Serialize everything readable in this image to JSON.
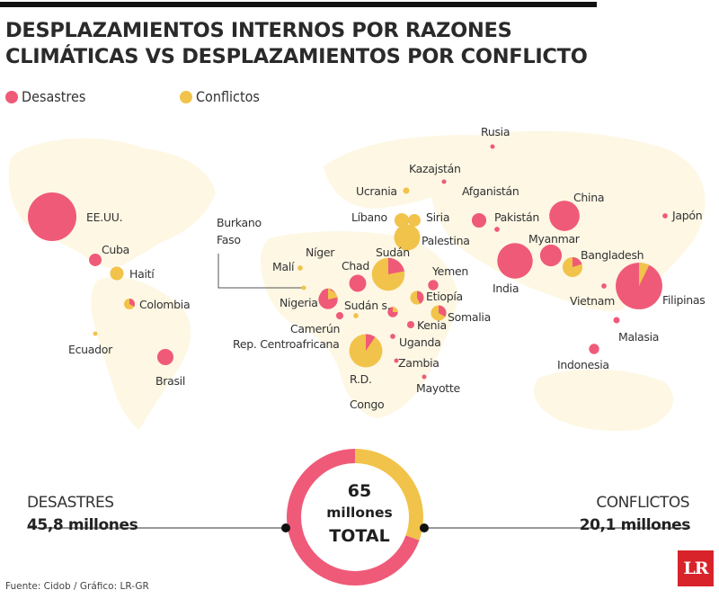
{
  "title": {
    "line1": "DESPLAZAMIENTOS INTERNOS POR RAZONES",
    "line2": "CLIMÁTICAS VS DESPLAZAMIENTOS POR CONFLICTO"
  },
  "legend": [
    {
      "label": "Desastres",
      "color": "#ef5a78"
    },
    {
      "label": "Conflictos",
      "color": "#f2c34a"
    }
  ],
  "chart_data": [
    {
      "type": "bubble-map",
      "title": "DESPLAZAMIENTOS INTERNOS POR RAZONES CLIMÁTICAS VS DESPLAZAMIENTOS POR CONFLICTO",
      "series": [
        "Desastres",
        "Conflictos"
      ],
      "countries": [
        {
          "name": "EE.UU.",
          "disaster": 9,
          "conflict": 0
        },
        {
          "name": "Cuba",
          "disaster": 0.6,
          "conflict": 0
        },
        {
          "name": "Haití",
          "disaster": 0,
          "conflict": 0.7
        },
        {
          "name": "Colombia",
          "disaster": 0.15,
          "conflict": 0.3
        },
        {
          "name": "Ecuador",
          "disaster": 0,
          "conflict": 0.03
        },
        {
          "name": "Brasil",
          "disaster": 1.0,
          "conflict": 0
        },
        {
          "name": "Rusia",
          "disaster": 0.05,
          "conflict": 0
        },
        {
          "name": "Kazajstán",
          "disaster": 0.05,
          "conflict": 0
        },
        {
          "name": "Ucrania",
          "disaster": 0,
          "conflict": 0.15
        },
        {
          "name": "Afganistán",
          "disaster": 0.8,
          "conflict": 0
        },
        {
          "name": "Líbano",
          "disaster": 0,
          "conflict": 0.8
        },
        {
          "name": "Siria",
          "disaster": 0,
          "conflict": 0.6
        },
        {
          "name": "Palestina",
          "disaster": 0,
          "conflict": 2.6
        },
        {
          "name": "China",
          "disaster": 3.5,
          "conflict": 0
        },
        {
          "name": "Japón",
          "disaster": 0.1,
          "conflict": 0
        },
        {
          "name": "Pakistán",
          "disaster": 0.1,
          "conflict": 0
        },
        {
          "name": "Myanmar",
          "disaster": 1.8,
          "conflict": 0
        },
        {
          "name": "Bangladesh",
          "disaster": 0.3,
          "conflict": 1.2
        },
        {
          "name": "India",
          "disaster": 4.8,
          "conflict": 0
        },
        {
          "name": "Vietnam",
          "disaster": 0.1,
          "conflict": 0
        },
        {
          "name": "Filipinas",
          "disaster": 7.7,
          "conflict": 0.6
        },
        {
          "name": "Malasia",
          "disaster": 0.15,
          "conflict": 0
        },
        {
          "name": "Indonesia",
          "disaster": 0.4,
          "conflict": 0
        },
        {
          "name": "Burkano Faso",
          "disaster": 0,
          "conflict": 0.03
        },
        {
          "name": "Malí",
          "disaster": 0,
          "conflict": 0.1
        },
        {
          "name": "Níger",
          "disaster": 1.0,
          "conflict": 0.05
        },
        {
          "name": "Chad",
          "disaster": 1.1,
          "conflict": 0
        },
        {
          "name": "Sudán",
          "disaster": 0.9,
          "conflict": 3.2
        },
        {
          "name": "Nigeria",
          "disaster": 1.1,
          "conflict": 0.3
        },
        {
          "name": "Sudán s.",
          "disaster": 0.3,
          "conflict": 0.1
        },
        {
          "name": "Camerún",
          "disaster": 0.2,
          "conflict": 0
        },
        {
          "name": "Yemen",
          "disaster": 0.4,
          "conflict": 0
        },
        {
          "name": "Etiopía",
          "disaster": 0.3,
          "conflict": 0.4
        },
        {
          "name": "Somalia",
          "disaster": 0.3,
          "conflict": 0.6
        },
        {
          "name": "Kenia",
          "disaster": 0.2,
          "conflict": 0
        },
        {
          "name": "Uganda",
          "disaster": 0.1,
          "conflict": 0
        },
        {
          "name": "Rep. Centroafricana",
          "disaster": 0,
          "conflict": 0.1
        },
        {
          "name": "Zambia",
          "disaster": 0.05,
          "conflict": 0
        },
        {
          "name": "Mayotte",
          "disaster": 0.05,
          "conflict": 0
        },
        {
          "name": "R.D. Congo",
          "disaster": 0.4,
          "conflict": 3.8
        }
      ]
    },
    {
      "type": "pie",
      "title": "65 millones TOTAL",
      "categories": [
        "Desastres",
        "Conflictos"
      ],
      "values": [
        45.8,
        20.1
      ],
      "unit": "millones"
    }
  ],
  "labels": {
    "eeuu": "EE.UU.",
    "cuba": "Cuba",
    "haiti": "Haití",
    "colombia": "Colombia",
    "ecuador": "Ecuador",
    "brasil": "Brasil",
    "rusia": "Rusia",
    "kazajstan": "Kazajstán",
    "ucrania": "Ucrania",
    "afganistan": "Afganistán",
    "libano": "Líbano",
    "siria": "Siria",
    "palestina": "Palestina",
    "china": "China",
    "japon": "Japón",
    "pakistan": "Pakistán",
    "myanmar": "Myanmar",
    "bangladesh": "Bangladesh",
    "india": "India",
    "vietnam": "Vietnam",
    "filipinas": "Filipinas",
    "malasia": "Malasia",
    "indonesia": "Indonesia",
    "burkano1": "Burkano",
    "burkano2": "Faso",
    "mali": "Malí",
    "niger": "Níger",
    "chad": "Chad",
    "sudan": "Sudán",
    "nigeria": "Nigeria",
    "sudans": "Sudán s.",
    "camerun": "Camerún",
    "yemen": "Yemen",
    "etiopia": "Etiopía",
    "somalia": "Somalia",
    "kenia": "Kenia",
    "uganda": "Uganda",
    "rca": "Rep. Centroafricana",
    "zambia": "Zambia",
    "mayotte": "Mayotte",
    "rdc1": "R.D.",
    "rdc2": "Congo"
  },
  "summary": {
    "left_caption": "DESASTRES",
    "left_value": "45,8 millones",
    "right_caption": "CONFLICTOS",
    "right_value": "20,1 millones",
    "total_number": "65",
    "total_unit": "millones",
    "total_word": "TOTAL"
  },
  "source": "Fuente: Cidob / Gráfico: LR-GR",
  "logo": "LR",
  "colors": {
    "disaster": "#ef5a78",
    "conflict": "#f2c34a",
    "land": "#fdf7e4"
  }
}
